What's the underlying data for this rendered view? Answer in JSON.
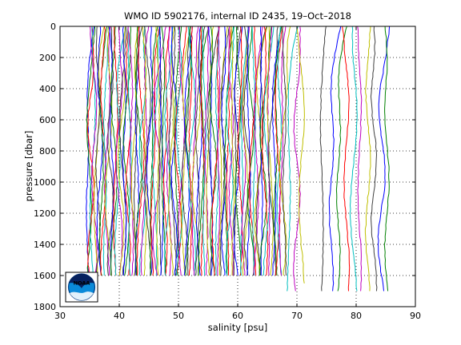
{
  "chart_data": {
    "type": "line",
    "title": "WMO ID 5902176, internal ID 2435, 19–Oct–2018",
    "xlabel": "salinity [psu]",
    "ylabel": "pressure [dbar]",
    "xlim": [
      30,
      90
    ],
    "ylim": [
      0,
      1800
    ],
    "y_reversed": true,
    "x_ticks": [
      "30",
      "40",
      "50",
      "60",
      "70",
      "80",
      "90"
    ],
    "y_ticks": [
      "0",
      "200",
      "400",
      "600",
      "800",
      "1000",
      "1200",
      "1400",
      "1600",
      "1800"
    ],
    "grid": true,
    "grid_style": "dotted",
    "line_colors": [
      "#0000ff",
      "#008000",
      "#ff0000",
      "#00bfbf",
      "#bf00bf",
      "#bfbf00",
      "#404040"
    ],
    "series_summary": {
      "dense_block": {
        "profile_count": 112,
        "start_salinity": 34.6,
        "offset_step_psu": 0.3,
        "max_pressure": 1600
      },
      "sparse_profiles": [
        {
          "salinity": 68.6,
          "max_pressure": 1720
        },
        {
          "salinity": 70.0,
          "max_pressure": 1720
        },
        {
          "salinity": 70.8,
          "max_pressure": 1660
        },
        {
          "salinity": 74.2,
          "max_pressure": 1720
        },
        {
          "salinity": 75.8,
          "max_pressure": 1720
        },
        {
          "salinity": 77.0,
          "max_pressure": 1720
        },
        {
          "salinity": 78.4,
          "max_pressure": 1720
        },
        {
          "salinity": 79.6,
          "max_pressure": 1720
        },
        {
          "salinity": 80.6,
          "max_pressure": 1720
        },
        {
          "salinity": 82.0,
          "max_pressure": 1720
        },
        {
          "salinity": 83.0,
          "max_pressure": 1720
        },
        {
          "salinity": 84.3,
          "max_pressure": 1720
        },
        {
          "salinity": 85.2,
          "max_pressure": 1700
        }
      ]
    }
  },
  "logo": {
    "text": "NOAA"
  }
}
